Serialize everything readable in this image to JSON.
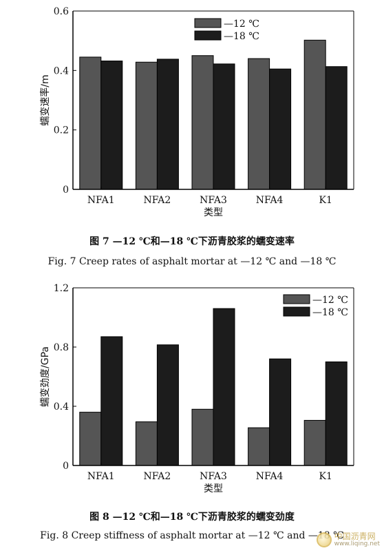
{
  "chart_data": [
    {
      "type": "bar",
      "categories": [
        "NFA1",
        "NFA2",
        "NFA3",
        "NFA4",
        "K1"
      ],
      "series": [
        {
          "name": "—12 ℃",
          "values": [
            0.445,
            0.428,
            0.45,
            0.44,
            0.502
          ],
          "color": "#555555"
        },
        {
          "name": "—18 ℃",
          "values": [
            0.432,
            0.438,
            0.422,
            0.405,
            0.413
          ],
          "color": "#1c1c1c"
        }
      ],
      "xlabel": "类型",
      "ylabel": "蠕变速率/m",
      "ylim": [
        0,
        0.6
      ],
      "yticks": [
        "0",
        "0.2",
        "0.4",
        "0.6"
      ],
      "grid": false,
      "legend_position": "top-center"
    },
    {
      "type": "bar",
      "categories": [
        "NFA1",
        "NFA2",
        "NFA3",
        "NFA4",
        "K1"
      ],
      "series": [
        {
          "name": "—12 ℃",
          "values": [
            0.36,
            0.295,
            0.38,
            0.255,
            0.305
          ],
          "color": "#555555"
        },
        {
          "name": "—18 ℃",
          "values": [
            0.87,
            0.815,
            1.06,
            0.72,
            0.7
          ],
          "color": "#1c1c1c"
        }
      ],
      "xlabel": "类型",
      "ylabel": "蠕变劲度/GPa",
      "ylim": [
        0,
        1.2
      ],
      "yticks": [
        "0",
        "0.4",
        "0.8",
        "1.2"
      ],
      "grid": false,
      "legend_position": "top-right"
    }
  ],
  "captions": {
    "fig7_zh": "图 7   —12 ℃和—18 ℃下沥青胶浆的蠕变速率",
    "fig7_en": "Fig. 7   Creep rates of asphalt mortar at —12 ℃ and —18 ℃",
    "fig8_zh": "图 8   —12 ℃和—18 ℃下沥青胶浆的蠕变劲度",
    "fig8_en": "Fig. 8   Creep stiffness of asphalt mortar at —12 ℃ and —18 ℃"
  },
  "watermark": {
    "name": "中国沥青网",
    "url": "www.liqing.net"
  }
}
